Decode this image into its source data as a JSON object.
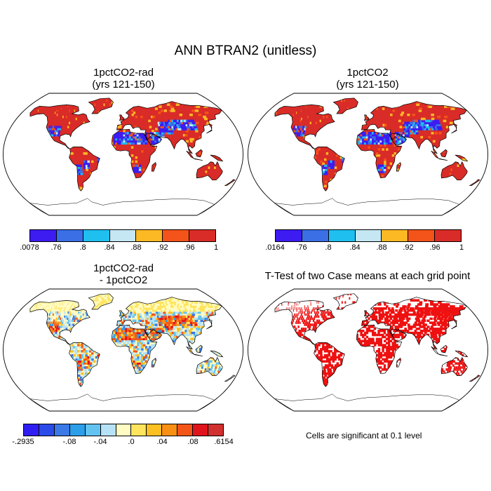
{
  "title": "ANN BTRAN2 (unitless)",
  "panels": [
    {
      "title": "1pctCO2-rad\n(yrs 121-150)",
      "type": "field"
    },
    {
      "title": "1pctCO2\n(yrs 121-150)",
      "type": "field"
    },
    {
      "title": "1pctCO2-rad\n- 1pctCO2",
      "type": "difference"
    },
    {
      "title": "T-Test of two Case means at each grid point",
      "type": "significance"
    }
  ],
  "colorbars": [
    {
      "colors": [
        "#3d1cf2",
        "#3a6fe6",
        "#1fbfef",
        "#c5e7f3",
        "#fdb924",
        "#f4531a",
        "#d92b27"
      ],
      "labels": [
        ".0078",
        ".76",
        ".8",
        ".84",
        ".88",
        ".92",
        ".96",
        "1"
      ]
    },
    {
      "colors": [
        "#3d1cf2",
        "#3a6fe6",
        "#1fbfef",
        "#c5e7f3",
        "#fdb924",
        "#f4531a",
        "#d92b27"
      ],
      "labels": [
        ".0164",
        ".76",
        ".8",
        ".84",
        ".88",
        ".92",
        ".96",
        "1"
      ]
    },
    {
      "colors": [
        "#2f1ef2",
        "#2a4be8",
        "#3a79e6",
        "#2d9ee8",
        "#63c3f0",
        "#b7e2f5",
        "#fffbc2",
        "#ffe45c",
        "#fcc022",
        "#f99014",
        "#f4561a",
        "#e0141c",
        "#d0302e"
      ],
      "labels": [
        "-.2935",
        "-.08",
        "-.04",
        ".0",
        ".04",
        ".08",
        ".6154"
      ],
      "label_positions": [
        0,
        3,
        5,
        7,
        9,
        11,
        13
      ]
    }
  ],
  "note": "Cells are significant at 0.1 level",
  "colors": {
    "ocean": "#ffffff",
    "land_high": "#d92b27",
    "land_dry": "#3d1cf2",
    "significant": "#ee1111"
  }
}
